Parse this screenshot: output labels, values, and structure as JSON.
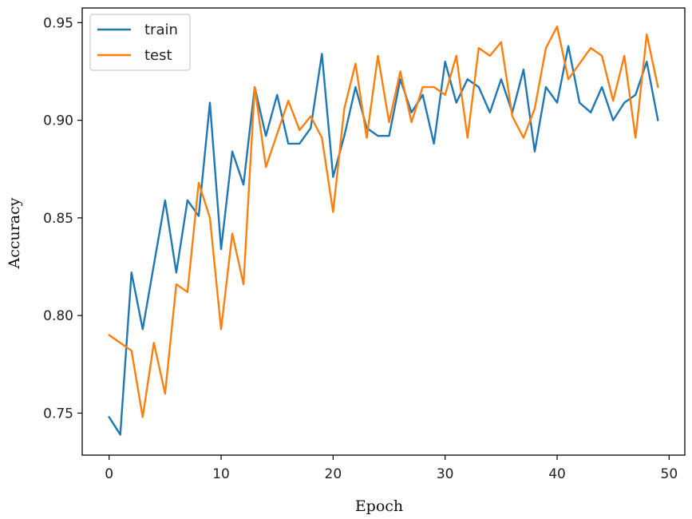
{
  "chart_data": {
    "type": "line",
    "xlabel": "Epoch",
    "ylabel": "Accuracy",
    "xlim": [
      -2.4,
      51.4
    ],
    "ylim": [
      0.7285,
      0.9575
    ],
    "xticks": [
      0,
      10,
      20,
      30,
      40,
      50
    ],
    "yticks": [
      0.75,
      0.8,
      0.85,
      0.9,
      0.95
    ],
    "ytick_labels": [
      "0.75",
      "0.80",
      "0.85",
      "0.90",
      "0.95"
    ],
    "grid": false,
    "legend": "top-left",
    "x": [
      0,
      1,
      2,
      3,
      4,
      5,
      6,
      7,
      8,
      9,
      10,
      11,
      12,
      13,
      14,
      15,
      16,
      17,
      18,
      19,
      20,
      21,
      22,
      23,
      24,
      25,
      26,
      27,
      28,
      29,
      30,
      31,
      32,
      33,
      34,
      35,
      36,
      37,
      38,
      39,
      40,
      41,
      42,
      43,
      44,
      45,
      46,
      47,
      48,
      49
    ],
    "series": [
      {
        "name": "train",
        "color": "#1f77b4",
        "values": [
          0.748,
          0.739,
          0.822,
          0.793,
          0.826,
          0.859,
          0.822,
          0.859,
          0.851,
          0.909,
          0.834,
          0.884,
          0.867,
          0.917,
          0.892,
          0.913,
          0.888,
          0.888,
          0.896,
          0.934,
          0.871,
          0.892,
          0.917,
          0.896,
          0.892,
          0.892,
          0.921,
          0.904,
          0.913,
          0.888,
          0.93,
          0.909,
          0.921,
          0.917,
          0.904,
          0.921,
          0.904,
          0.926,
          0.884,
          0.917,
          0.909,
          0.938,
          0.909,
          0.904,
          0.917,
          0.9,
          0.909,
          0.913,
          0.93,
          0.9
        ]
      },
      {
        "name": "test",
        "color": "#ff7f0e",
        "values": [
          0.79,
          0.786,
          0.782,
          0.748,
          0.786,
          0.76,
          0.816,
          0.812,
          0.868,
          0.85,
          0.793,
          0.842,
          0.816,
          0.917,
          0.876,
          0.893,
          0.91,
          0.895,
          0.902,
          0.891,
          0.853,
          0.906,
          0.929,
          0.891,
          0.933,
          0.899,
          0.925,
          0.899,
          0.917,
          0.917,
          0.913,
          0.933,
          0.891,
          0.937,
          0.933,
          0.94,
          0.902,
          0.891,
          0.906,
          0.937,
          0.948,
          0.921,
          0.929,
          0.937,
          0.933,
          0.91,
          0.933,
          0.891,
          0.944,
          0.917
        ]
      }
    ]
  }
}
